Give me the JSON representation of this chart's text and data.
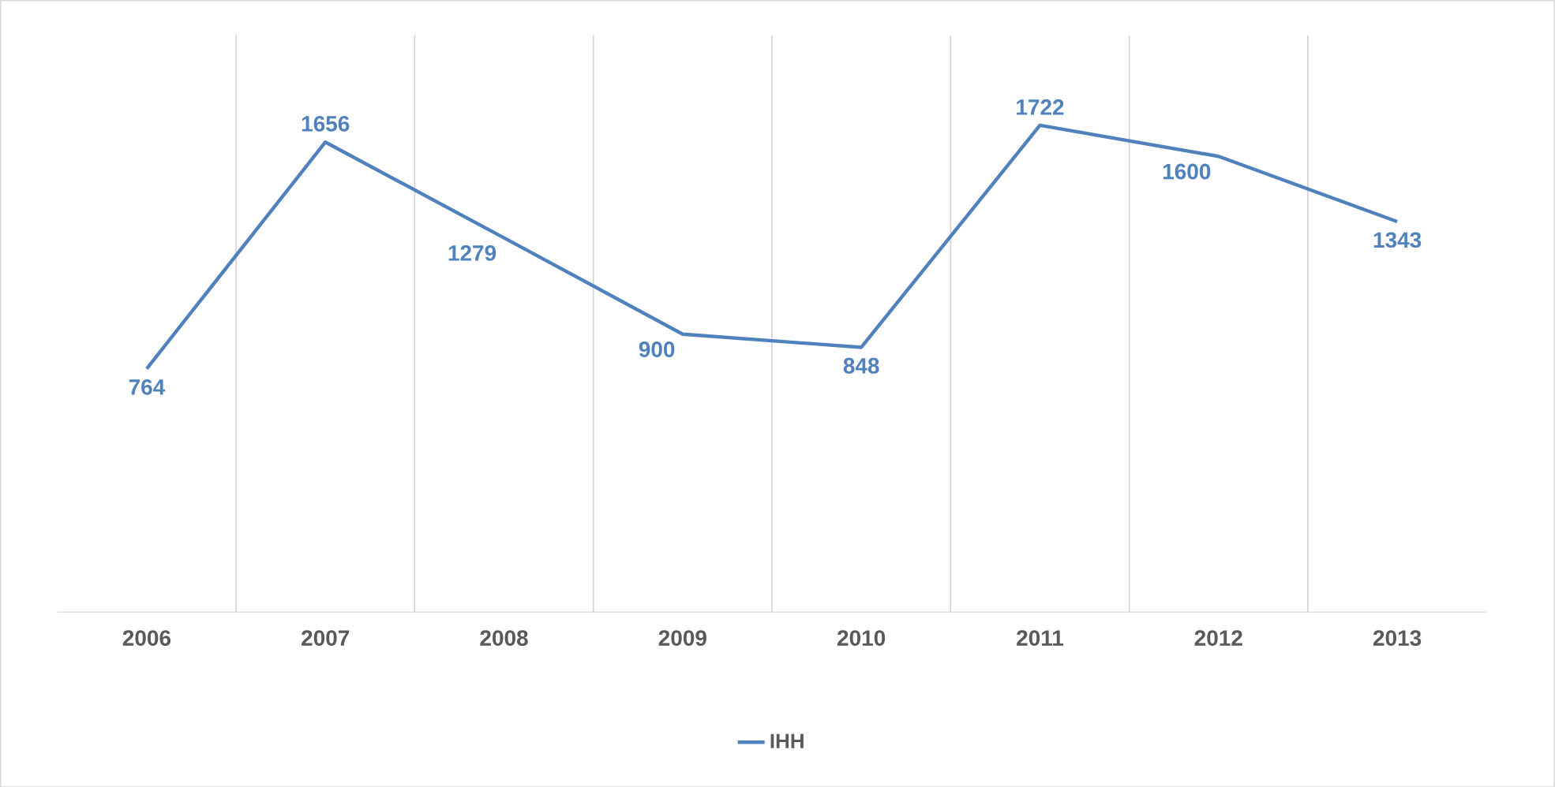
{
  "chart_data": {
    "type": "line",
    "categories": [
      "2006",
      "2007",
      "2008",
      "2009",
      "2010",
      "2011",
      "2012",
      "2013"
    ],
    "series": [
      {
        "name": "IHH",
        "color": "#4f81bd",
        "values": [
          764,
          1656,
          1279,
          900,
          848,
          1722,
          1600,
          1343
        ]
      }
    ],
    "data_labels": true,
    "grid": "x",
    "legend": "bottom",
    "line_style": "solid",
    "tick_labels": "x"
  }
}
